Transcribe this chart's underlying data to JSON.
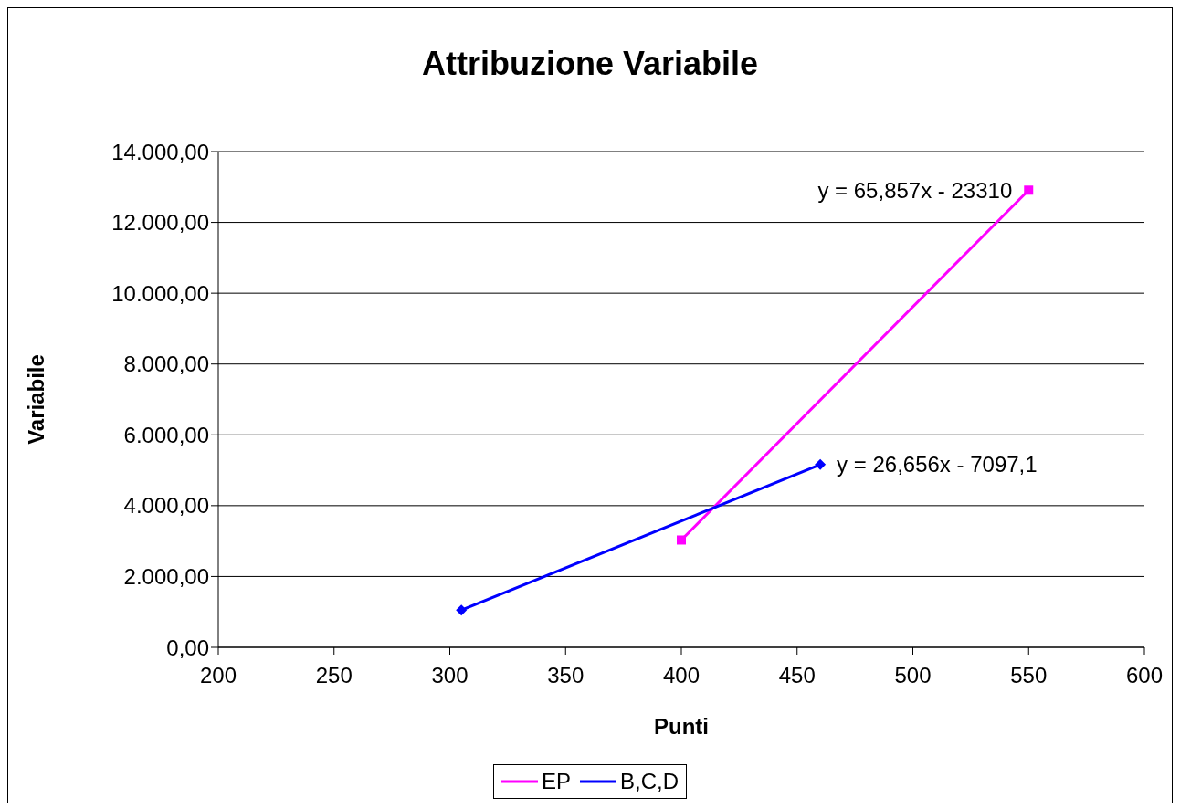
{
  "chart_data": {
    "type": "line",
    "title": "Attribuzione Variabile",
    "xlabel": "Punti",
    "ylabel": "Variabile",
    "series": [
      {
        "name": "EP",
        "color": "#ff00ff",
        "marker": "square",
        "x": [
          400,
          550
        ],
        "values": [
          3030,
          12910
        ]
      },
      {
        "name": "B,C,D",
        "color": "#0000ff",
        "marker": "diamond",
        "x": [
          305,
          460
        ],
        "values": [
          1050,
          5160
        ]
      }
    ],
    "xlim": [
      200,
      600
    ],
    "xticks": [
      200,
      250,
      300,
      350,
      400,
      450,
      500,
      550,
      600
    ],
    "ylim": [
      0,
      14000
    ],
    "yticks": [
      {
        "value": 0,
        "label": "0,00"
      },
      {
        "value": 2000,
        "label": "2.000,00"
      },
      {
        "value": 4000,
        "label": "4.000,00"
      },
      {
        "value": 6000,
        "label": "6.000,00"
      },
      {
        "value": 8000,
        "label": "8.000,00"
      },
      {
        "value": 10000,
        "label": "10.000,00"
      },
      {
        "value": 12000,
        "label": "12.000,00"
      },
      {
        "value": 14000,
        "label": "14.000,00"
      }
    ],
    "annotations": [
      {
        "text": "y = 65,857x - 23310",
        "x": 550,
        "y": 12910
      },
      {
        "text": "y = 26,656x - 7097,1",
        "x": 460,
        "y": 5160
      }
    ],
    "grid": "y",
    "legend": "bottom",
    "line_style": "solid"
  }
}
